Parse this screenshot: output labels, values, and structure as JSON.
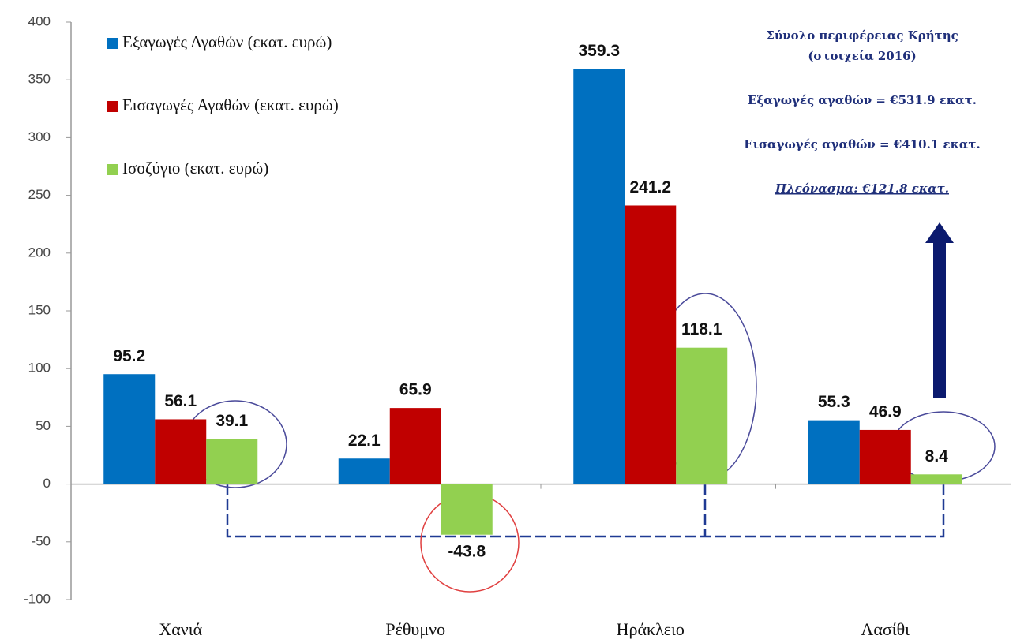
{
  "chart_data": {
    "type": "bar",
    "categories": [
      "Χανιά",
      "Ρέθυμνο",
      "Ηράκλειο",
      "Λασίθι"
    ],
    "series": [
      {
        "name": "Εξαγωγές Αγαθών (εκατ. ευρώ)",
        "color": "#0070c0",
        "values": [
          95.2,
          22.1,
          359.3,
          55.3
        ]
      },
      {
        "name": "Εισαγωγές Αγαθών (εκατ. ευρώ)",
        "color": "#c00000",
        "values": [
          56.1,
          65.9,
          241.2,
          46.9
        ]
      },
      {
        "name": "Ισοζύγιο (εκατ. ευρώ)",
        "color": "#92d050",
        "values": [
          39.1,
          -43.8,
          118.1,
          8.4
        ]
      }
    ],
    "ylim": [
      -100,
      400
    ],
    "yticks": [
      -100,
      -50,
      0,
      50,
      100,
      150,
      200,
      250,
      300,
      350,
      400
    ],
    "annotations": [
      "Σύνολο περιφέρειας Κρήτης",
      "(στοιχεία 2016)",
      "Εξαγωγές αγαθών = €531.9 εκατ.",
      "Εισαγωγές αγαθών = €410.1 εκατ.",
      "Πλεόνασμα: €121.8 εκατ."
    ]
  }
}
